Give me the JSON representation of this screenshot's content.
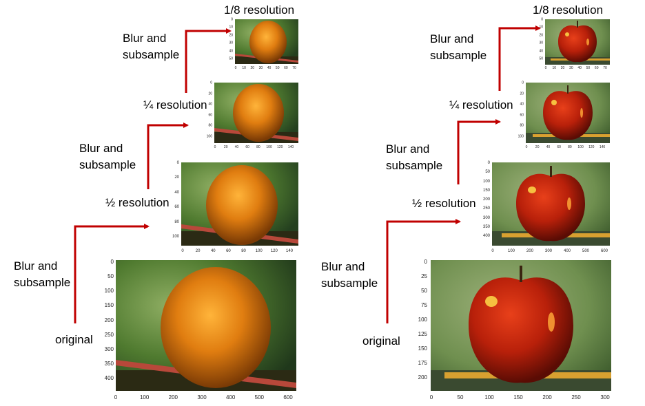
{
  "labels": {
    "blur_and": "Blur and",
    "subsample": "subsample",
    "original": "original",
    "half": "½ resolution",
    "quarter": "¼ resolution",
    "eighth": "1/8 resolution"
  },
  "colors": {
    "arrow": "#c00000"
  },
  "orange": {
    "original": {
      "x_ticks": [
        "0",
        "100",
        "200",
        "300",
        "400",
        "500",
        "600"
      ],
      "y_ticks": [
        "0",
        "50",
        "100",
        "150",
        "200",
        "250",
        "300",
        "350",
        "400"
      ]
    },
    "half": {
      "x_ticks": [
        "0",
        "20",
        "40",
        "60",
        "80",
        "100",
        "120",
        "140"
      ],
      "y_ticks": [
        "0",
        "20",
        "40",
        "60",
        "80",
        "100"
      ]
    },
    "quarter": {
      "x_ticks": [
        "0",
        "20",
        "40",
        "60",
        "80",
        "100",
        "120",
        "140"
      ],
      "y_ticks": [
        "0",
        "20",
        "40",
        "60",
        "80",
        "100"
      ]
    },
    "eighth": {
      "x_ticks": [
        "0",
        "10",
        "20",
        "30",
        "40",
        "50",
        "60",
        "70"
      ],
      "y_ticks": [
        "0",
        "10",
        "20",
        "30",
        "40",
        "50"
      ]
    }
  },
  "apple": {
    "original": {
      "x_ticks": [
        "0",
        "50",
        "100",
        "150",
        "200",
        "250",
        "300"
      ],
      "y_ticks": [
        "0",
        "25",
        "50",
        "75",
        "100",
        "125",
        "150",
        "175",
        "200"
      ]
    },
    "half": {
      "x_ticks": [
        "0",
        "100",
        "200",
        "300",
        "400",
        "500",
        "600"
      ],
      "y_ticks": [
        "0",
        "50",
        "100",
        "150",
        "200",
        "250",
        "300",
        "350",
        "400"
      ]
    },
    "quarter": {
      "x_ticks": [
        "0",
        "20",
        "40",
        "60",
        "80",
        "100",
        "120",
        "140"
      ],
      "y_ticks": [
        "0",
        "20",
        "40",
        "60",
        "80",
        "100"
      ]
    },
    "eighth": {
      "x_ticks": [
        "0",
        "10",
        "20",
        "30",
        "40",
        "50",
        "60",
        "70"
      ],
      "y_ticks": [
        "0",
        "10",
        "20",
        "30",
        "40",
        "50"
      ]
    }
  }
}
